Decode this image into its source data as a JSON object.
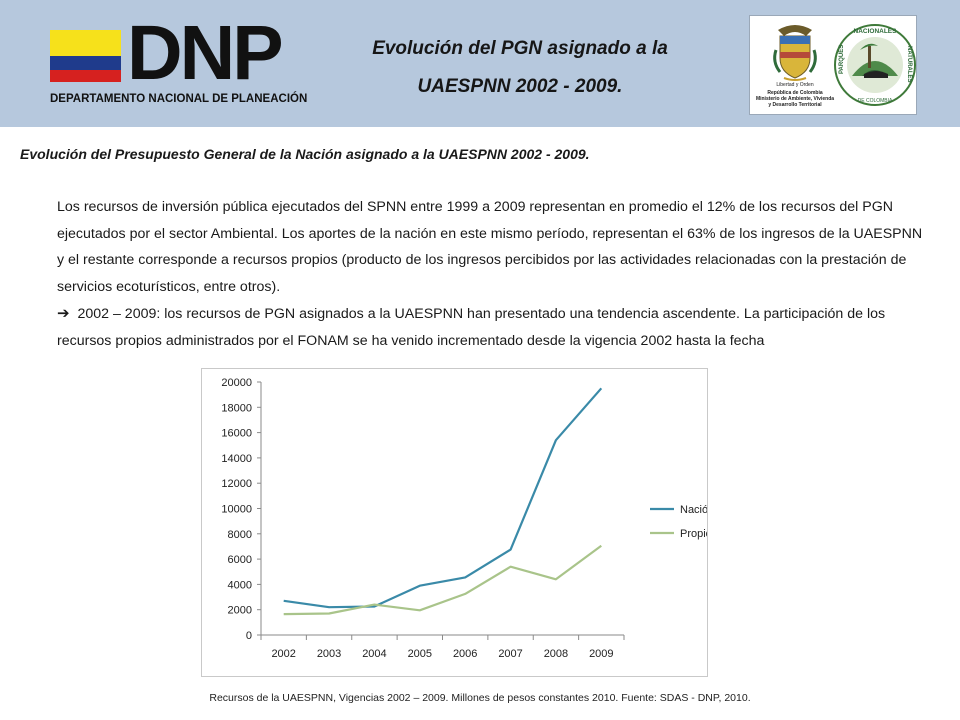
{
  "header": {
    "title_line1": "Evolución del PGN asignado a la",
    "title_line2": "UAESPNN 2002 - 2009.",
    "logo_text": "DNP",
    "logo_subtitle": "DEPARTAMENTO NACIONAL DE PLANEACIÓN",
    "seal_motto": "Libertad y Orden",
    "seal_line1": "República de Colombia",
    "seal_line2": "Ministerio de Ambiente, Vivienda",
    "seal_line3": "y Desarrollo Territorial",
    "parks_logo_text": "PARQUES NACIONALES NATURALES DE COLOMBIA",
    "colors": {
      "header_bg": "#b6c8dd",
      "flag_yellow": "#f6e11b",
      "flag_blue": "#1f3b8c",
      "flag_red": "#d6211f"
    }
  },
  "subtitle": "Evolución del Presupuesto General de la Nación asignado a la UAESPNN 2002 - 2009.",
  "paragraph1": "Los recursos de inversión pública ejecutados del SPNN entre 1999 a 2009 representan en promedio el 12% de los recursos del PGN ejecutados por el sector Ambiental. Los aportes de la nación en este mismo período, representan el 63% de los ingresos de la UAESPNN y el restante corresponde a recursos propios (producto de los ingresos percibidos por las actividades relacionadas con la prestación de servicios ecoturísticos, entre otros).",
  "paragraph2_arrow": "➔",
  "paragraph2": "2002 – 2009: los recursos de PGN asignados a la UAESPNN han presentado una tendencia ascendente. La participación de los recursos propios administrados por el FONAM se ha venido incrementado desde la vigencia 2002 hasta la fecha",
  "chart_data": {
    "type": "line",
    "x": [
      "2002",
      "2003",
      "2004",
      "2005",
      "2006",
      "2007",
      "2008",
      "2009"
    ],
    "series": [
      {
        "name": "Nación",
        "color": "#3a8aa8",
        "values": [
          2700,
          2200,
          2250,
          3900,
          4550,
          6750,
          15400,
          19500
        ]
      },
      {
        "name": "Propios",
        "color": "#a9c48a",
        "values": [
          1650,
          1700,
          2400,
          1950,
          3250,
          5400,
          4400,
          7050
        ]
      }
    ],
    "ylim": [
      0,
      20000
    ],
    "yticks": [
      0,
      2000,
      4000,
      6000,
      8000,
      10000,
      12000,
      14000,
      16000,
      18000,
      20000
    ],
    "grid": false,
    "legend_position": "right"
  },
  "caption": "Recursos de la UAESPNN, Vigencias  2002 – 2009. Millones de pesos constantes 2010. Fuente: SDAS - DNP, 2010."
}
